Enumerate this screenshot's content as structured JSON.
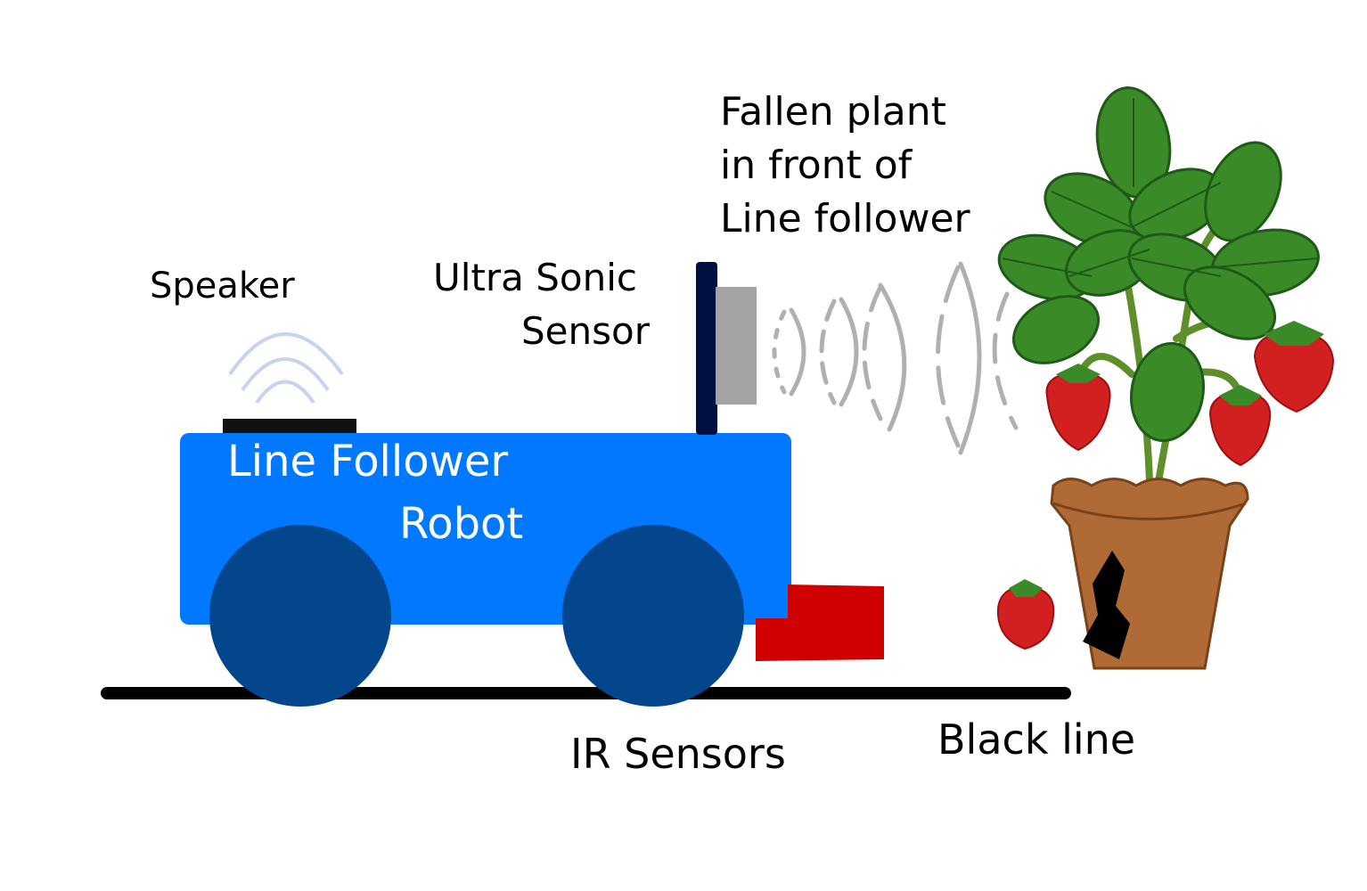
{
  "labels": {
    "speaker": "Speaker",
    "ultrasonic_line1": "Ultra Sonic",
    "ultrasonic_line2": "Sensor",
    "plant_line1": "Fallen plant",
    "plant_line2": "in front of",
    "plant_line3": "Line follower",
    "robot_line1": "Line Follower",
    "robot_line2": "Robot",
    "ir_sensors": "IR Sensors",
    "black_line": "Black line"
  },
  "colors": {
    "robot_body": "#0078ff",
    "wheels": "#03468c",
    "ir_sensor": "#d00000",
    "ultrasonic_mount": "#001040",
    "ultrasonic_sensor": "#a3a3a3",
    "pot": "#b06a35",
    "leaf": "#3a8a28",
    "strawberry": "#d21f1f",
    "ground_line": "#000000"
  }
}
